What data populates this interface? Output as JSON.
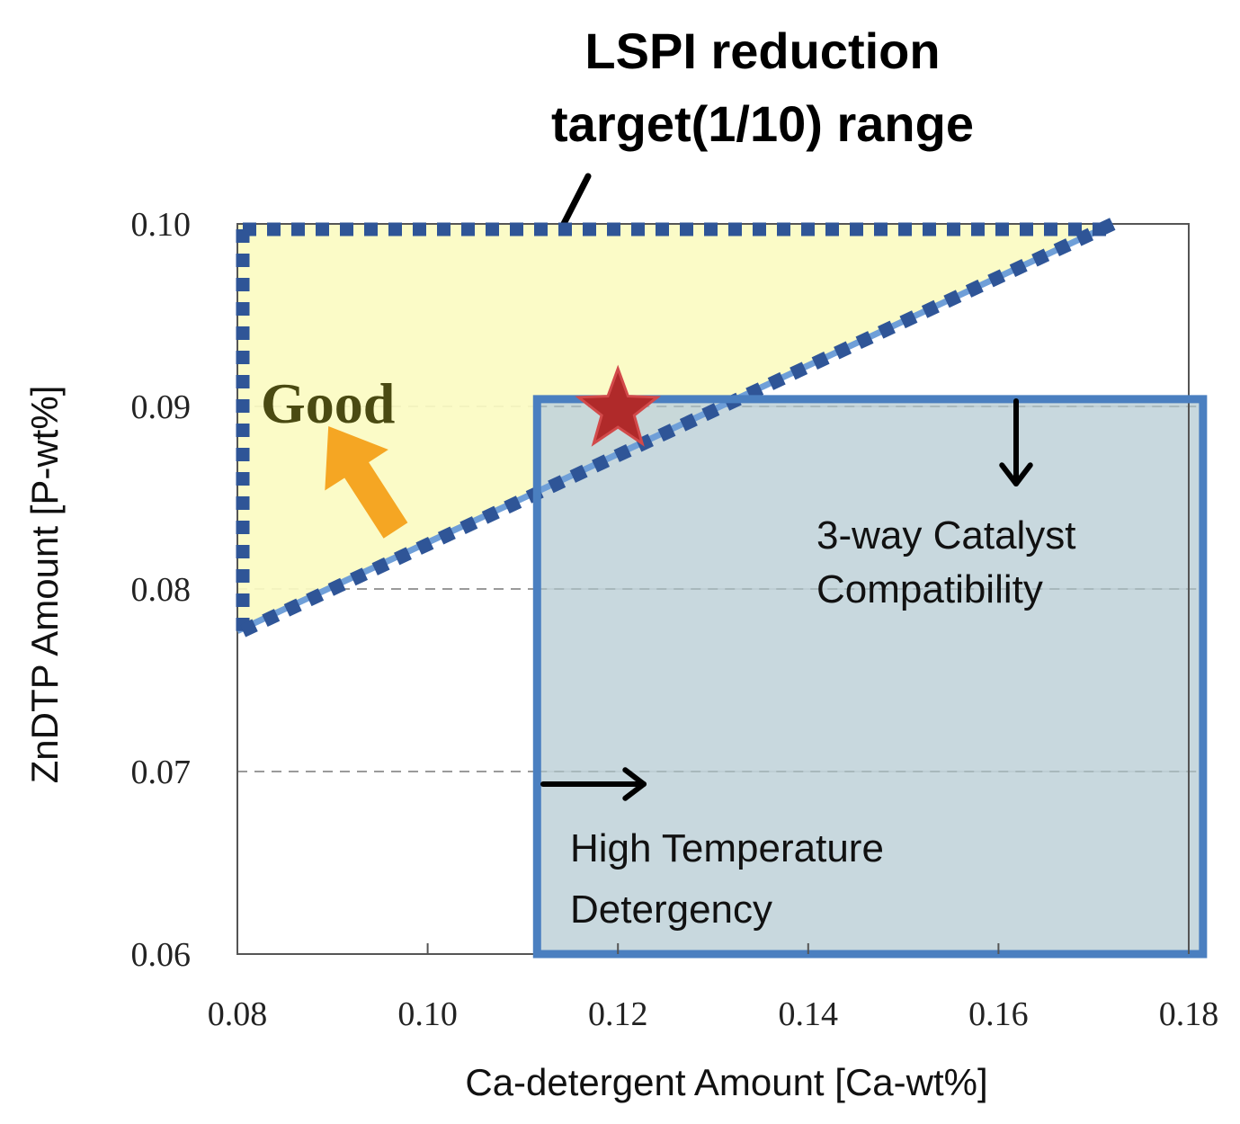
{
  "chart_data": {
    "type": "area",
    "title_lines": [
      "LSPI reduction",
      "target(1/10) range"
    ],
    "xlabel": "Ca-detergent Amount [Ca-wt%]",
    "ylabel": "ZnDTP Amount  [P-wt%]",
    "xlim": [
      0.08,
      0.18
    ],
    "ylim": [
      0.06,
      0.1
    ],
    "x_ticks": [
      "0.08",
      "0.10",
      "0.12",
      "0.14",
      "0.16",
      "0.18"
    ],
    "x_tick_values": [
      0.08,
      0.1,
      0.12,
      0.14,
      0.16,
      0.18
    ],
    "y_ticks": [
      "0.10",
      "0.09",
      "0.08",
      "0.07",
      "0.06"
    ],
    "y_tick_values": [
      0.1,
      0.09,
      0.08,
      0.07,
      0.06
    ],
    "gridlines_y": [
      0.09,
      0.08,
      0.07
    ],
    "lspi_target_region": {
      "label": "LSPI reduction target(1/10) range",
      "boundary_line": [
        [
          0.08,
          0.0777
        ],
        [
          0.172,
          0.1
        ]
      ],
      "polygon": [
        [
          0.08,
          0.1
        ],
        [
          0.172,
          0.1
        ],
        [
          0.08,
          0.0777
        ]
      ],
      "fill_color": "#fbfbc2"
    },
    "compatibility_region": {
      "x_min": 0.1115,
      "x_max": 0.1815,
      "y_min": 0.06,
      "y_max": 0.0904,
      "fill_color": "#c2d4da",
      "border_color": "#4a7fc0"
    },
    "annotations": {
      "good": "Good",
      "catalyst": [
        "3-way Catalyst",
        "Compatibility"
      ],
      "detergency": [
        "High Temperature",
        "Detergency"
      ]
    },
    "marker": {
      "shape": "star",
      "x": 0.12,
      "y": 0.09,
      "color": "#b02a2a"
    },
    "dotted_border_color": "#2f5597",
    "arrow_color": "#f5a623"
  }
}
